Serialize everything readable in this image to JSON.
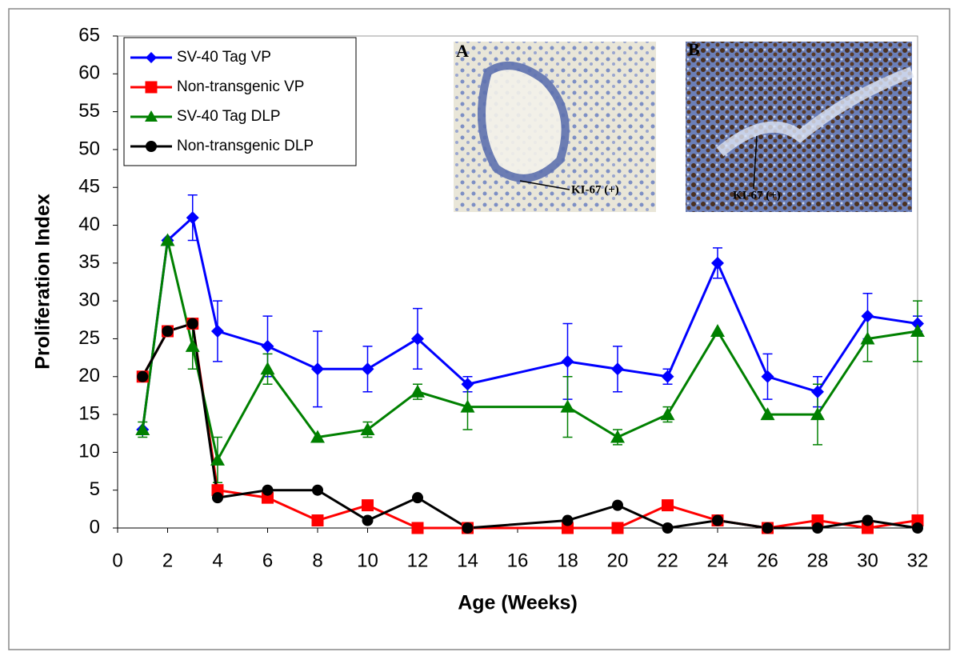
{
  "chart_data": {
    "type": "line",
    "x_label": "Age (Weeks)",
    "y_label": "Proliferation Index",
    "x": [
      1,
      2,
      3,
      4,
      6,
      8,
      10,
      12,
      14,
      18,
      20,
      22,
      24,
      26,
      28,
      30,
      32
    ],
    "xlim": [
      0,
      32
    ],
    "xticks": [
      0,
      2,
      4,
      6,
      8,
      10,
      12,
      14,
      16,
      18,
      20,
      22,
      24,
      26,
      28,
      30,
      32
    ],
    "ylim": [
      0,
      65
    ],
    "yticks": [
      0,
      5,
      10,
      15,
      20,
      25,
      30,
      35,
      40,
      45,
      50,
      55,
      60,
      65
    ],
    "grid": false,
    "legend": "upper left",
    "series": [
      {
        "name": "SV-40 Tag VP",
        "color": "#0000ff",
        "marker": "diamond",
        "values": [
          13,
          38,
          41,
          26,
          24,
          21,
          21,
          25,
          19,
          22,
          21,
          20,
          35,
          20,
          18,
          28,
          27
        ],
        "errors": [
          0,
          0,
          3,
          4,
          4,
          5,
          3,
          4,
          1,
          5,
          3,
          1,
          2,
          3,
          2,
          3,
          1
        ]
      },
      {
        "name": "Non-transgenic VP",
        "color": "#ff0000",
        "marker": "square",
        "values": [
          20,
          26,
          27,
          5,
          4,
          1,
          3,
          0,
          0,
          0,
          0,
          3,
          1,
          0,
          1,
          0,
          1
        ]
      },
      {
        "name": "SV-40 Tag DLP",
        "color": "#008000",
        "marker": "triangle",
        "values": [
          13,
          38,
          24,
          9,
          21,
          12,
          13,
          18,
          16,
          16,
          12,
          15,
          26,
          15,
          15,
          25,
          26
        ],
        "errors": [
          1,
          0,
          3,
          3,
          2,
          0,
          1,
          1,
          3,
          4,
          1,
          1,
          0,
          0,
          4,
          3,
          4
        ]
      },
      {
        "name": "Non-transgenic DLP",
        "color": "#000000",
        "marker": "circle",
        "values": [
          20,
          26,
          27,
          4,
          5,
          5,
          1,
          4,
          0,
          1,
          3,
          0,
          1,
          0,
          0,
          1,
          0
        ]
      }
    ],
    "insets": [
      {
        "label": "A",
        "annotation": "KI-67 (+)"
      },
      {
        "label": "B",
        "annotation": "KI-67 (+)"
      }
    ]
  }
}
